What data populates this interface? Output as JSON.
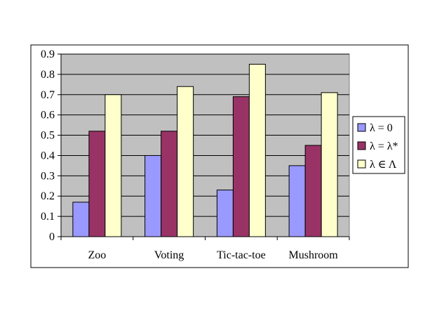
{
  "chart_data": {
    "type": "bar",
    "title": "",
    "xlabel": "",
    "ylabel": "",
    "categories": [
      "Zoo",
      "Voting",
      "Tic-tac-toe",
      "Mushroom"
    ],
    "series": [
      {
        "name": "λ = 0",
        "color": "#9999ff",
        "values": [
          0.17,
          0.4,
          0.23,
          0.35
        ]
      },
      {
        "name": "λ = λ*",
        "color": "#993366",
        "values": [
          0.52,
          0.52,
          0.69,
          0.45
        ]
      },
      {
        "name": "λ ∈ Λ",
        "color": "#ffffcc",
        "values": [
          0.7,
          0.74,
          0.85,
          0.71
        ]
      }
    ],
    "ylim": [
      0,
      0.9
    ],
    "yticks": [
      "0",
      "0.1",
      "0.2",
      "0.3",
      "0.4",
      "0.5",
      "0.6",
      "0.7",
      "0.8",
      "0.9"
    ],
    "grid": true,
    "plot_background": "#c0c0c0",
    "legend_position": "right"
  }
}
